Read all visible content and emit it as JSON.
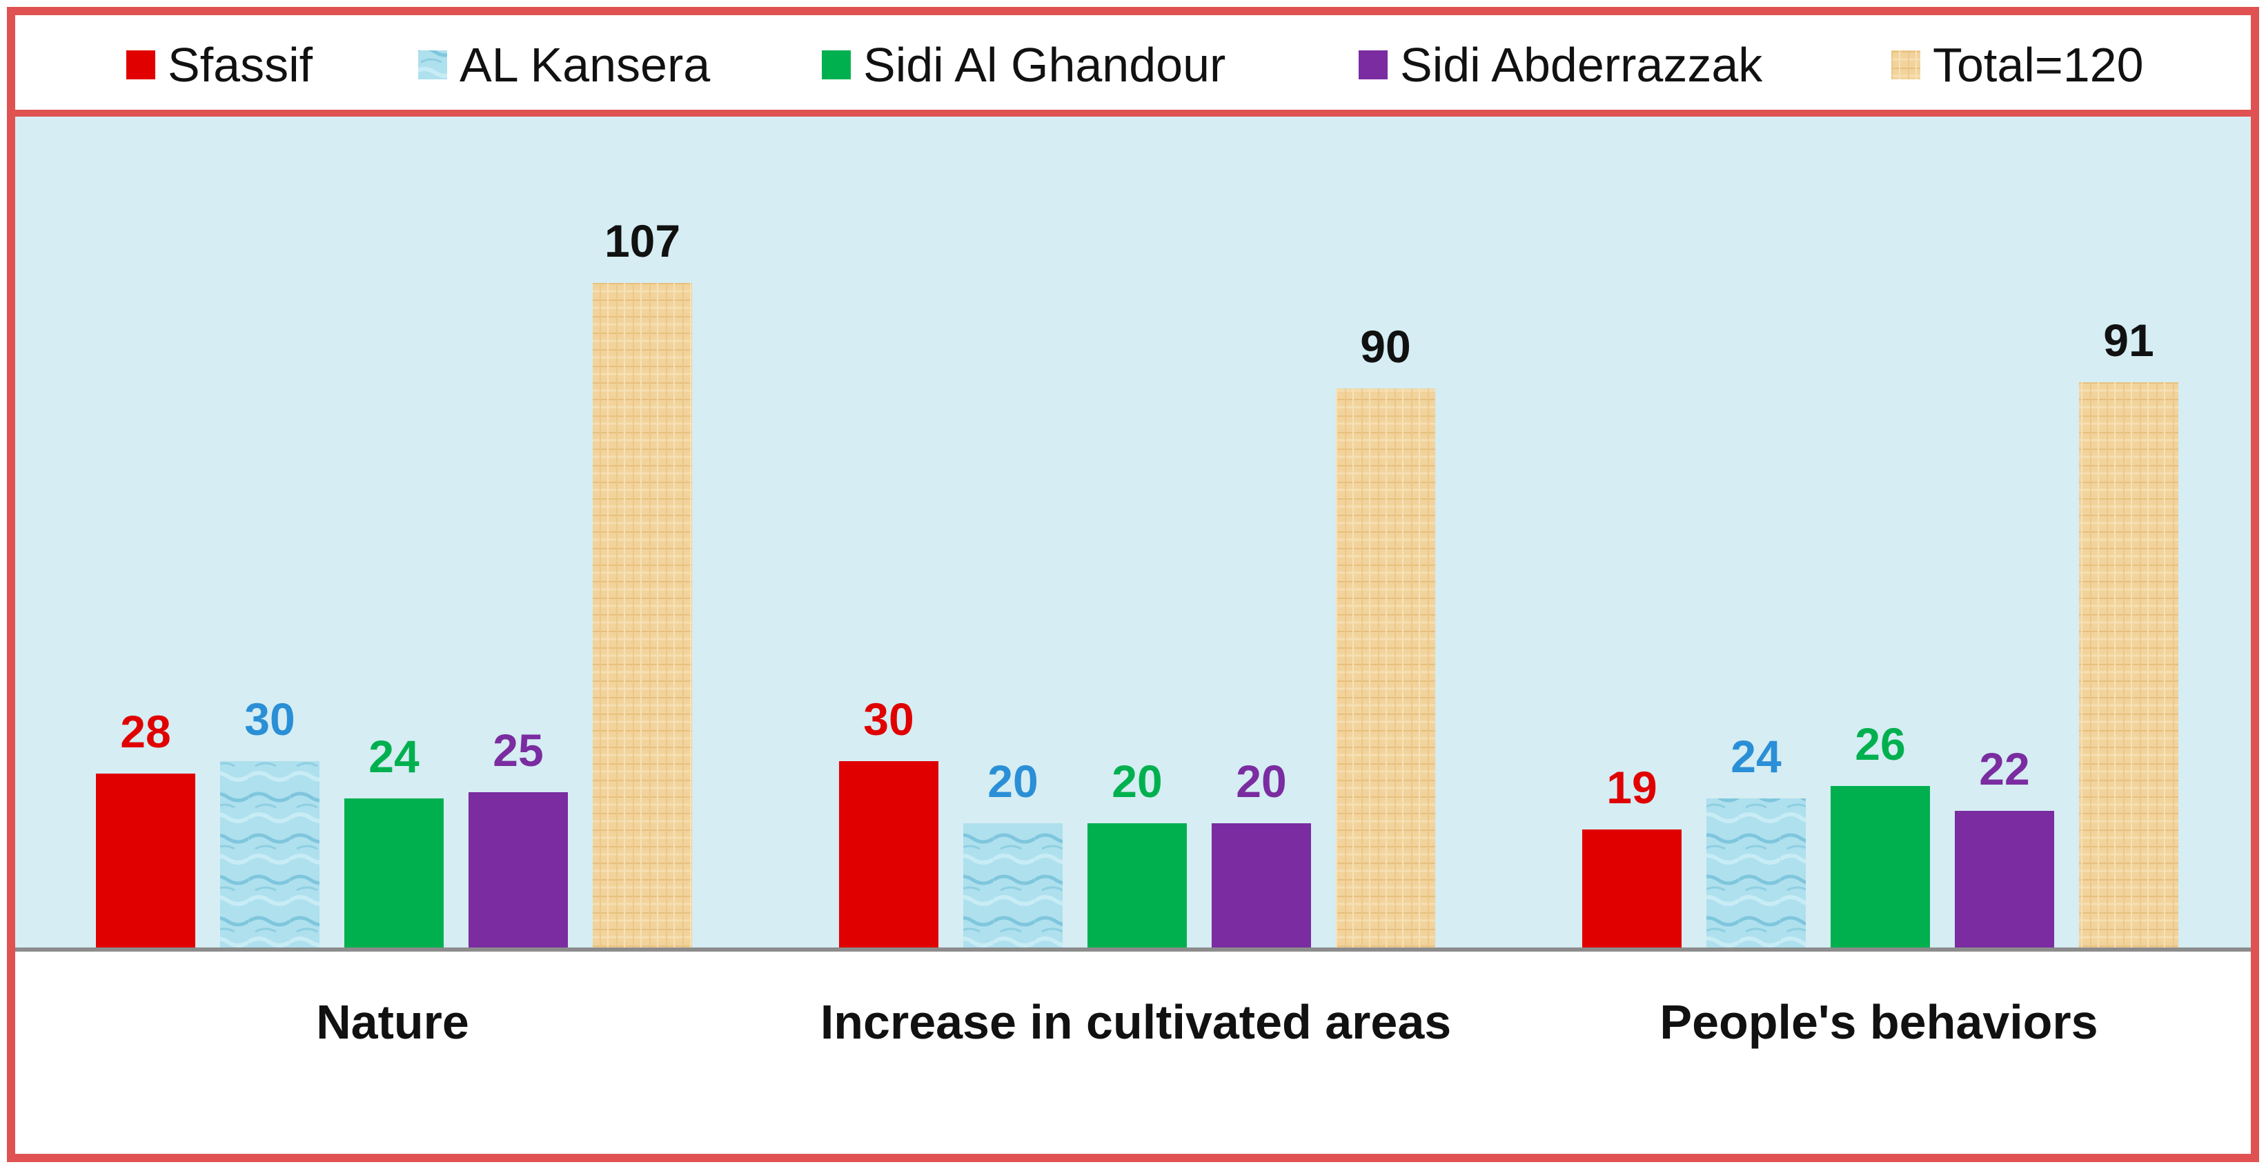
{
  "chart_data": {
    "type": "bar",
    "categories": [
      "Nature",
      "Increase in cultivated areas",
      "People's behaviors"
    ],
    "series": [
      {
        "name": "Sfassif",
        "values": [
          28,
          30,
          19
        ],
        "color": "#e00000",
        "label_color": "#e00000",
        "pattern": "solid"
      },
      {
        "name": "AL Kansera",
        "values": [
          30,
          20,
          24
        ],
        "color": "#a8dcec",
        "label_color": "#2a8fd6",
        "pattern": "water"
      },
      {
        "name": "Sidi Al Ghandour",
        "values": [
          24,
          20,
          26
        ],
        "color": "#00b04f",
        "label_color": "#00b04f",
        "pattern": "solid"
      },
      {
        "name": "Sidi Abderrazzak",
        "values": [
          25,
          20,
          22
        ],
        "color": "#7a2ca0",
        "label_color": "#7a2ca0",
        "pattern": "solid"
      },
      {
        "name": "Total=120",
        "values": [
          107,
          90,
          91
        ],
        "color": "#f1cf92",
        "label_color": "#111111",
        "pattern": "papyrus"
      }
    ],
    "ylim": [
      0,
      120
    ],
    "title": "",
    "xlabel": "",
    "ylabel": "",
    "grid": false,
    "legend_position": "top",
    "plot_background": "#d5edf3",
    "border_color": "#e05252"
  }
}
